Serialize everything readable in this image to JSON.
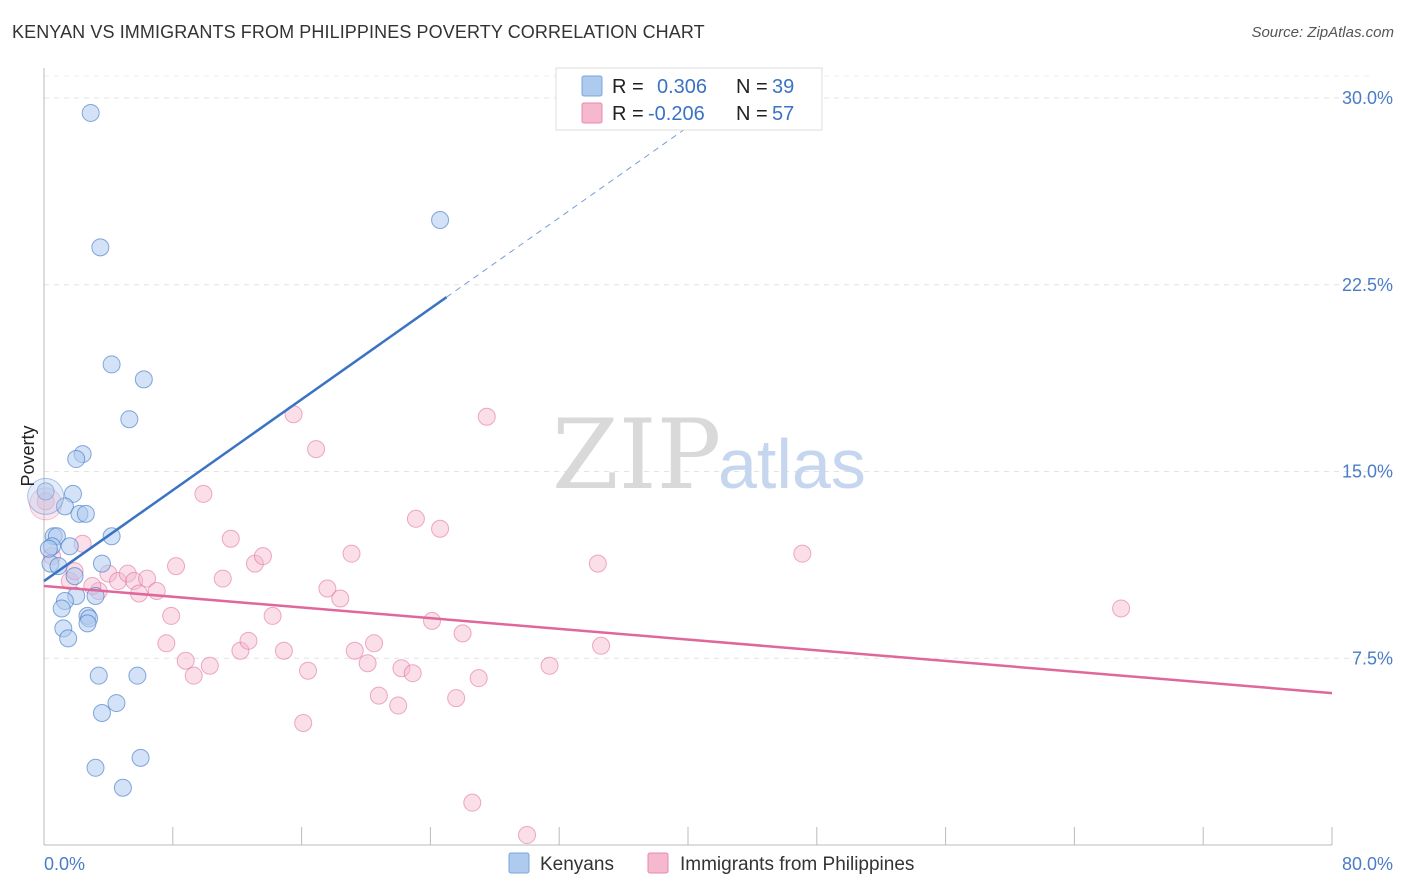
{
  "title": "KENYAN VS IMMIGRANTS FROM PHILIPPINES POVERTY CORRELATION CHART",
  "source": "Source: ZipAtlas.com",
  "watermark": {
    "zip": "ZIP",
    "atlas": "atlas"
  },
  "colors": {
    "blue": "#3b73c4",
    "blue_fill": "#aecbef",
    "pink": "#e0679a",
    "pink_fill": "#f5b8ce",
    "tick": "#4a7cc7"
  },
  "legend": {
    "rows": [
      {
        "r_label": "R =",
        "r_value": "0.306",
        "n_label": "N =",
        "n_value": "39"
      },
      {
        "r_label": "R =",
        "r_value": "-0.206",
        "n_label": "N =",
        "n_value": "57"
      }
    ]
  },
  "bottom_legend": [
    "Kenyans",
    "Immigrants from Philippines"
  ],
  "chart_data": {
    "type": "scatter",
    "xlabel": "",
    "ylabel": "Poverty",
    "xlim": [
      0,
      80
    ],
    "ylim": [
      0,
      30
    ],
    "x_tick_labels": [
      "0.0%",
      "80.0%"
    ],
    "y_ticks": [
      7.5,
      15.0,
      22.5,
      30.0
    ],
    "y_tick_labels": [
      "7.5%",
      "15.0%",
      "22.5%",
      "30.0%"
    ],
    "grid": true,
    "legend_position": "top-center",
    "series": [
      {
        "name": "Kenyans",
        "trend": {
          "x0": 0,
          "y0": 10.6,
          "x1": 25,
          "y1": 22.0,
          "dashed_to_x": 40
        },
        "points": [
          [
            2.9,
            29.4
          ],
          [
            3.5,
            24.0
          ],
          [
            24.6,
            25.1
          ],
          [
            4.2,
            19.3
          ],
          [
            6.2,
            18.7
          ],
          [
            5.3,
            17.1
          ],
          [
            2.4,
            15.7
          ],
          [
            2.0,
            15.5
          ],
          [
            0.1,
            14.2
          ],
          [
            1.8,
            14.1
          ],
          [
            1.3,
            13.6
          ],
          [
            2.2,
            13.3
          ],
          [
            2.6,
            13.3
          ],
          [
            0.6,
            12.4
          ],
          [
            0.8,
            12.4
          ],
          [
            4.2,
            12.4
          ],
          [
            0.5,
            12.0
          ],
          [
            1.6,
            12.0
          ],
          [
            0.4,
            11.3
          ],
          [
            0.9,
            11.2
          ],
          [
            3.6,
            11.3
          ],
          [
            1.9,
            10.8
          ],
          [
            2.0,
            10.0
          ],
          [
            3.2,
            10.0
          ],
          [
            1.3,
            9.8
          ],
          [
            1.1,
            9.5
          ],
          [
            2.7,
            9.2
          ],
          [
            2.8,
            9.1
          ],
          [
            2.7,
            8.9
          ],
          [
            1.2,
            8.7
          ],
          [
            1.5,
            8.3
          ],
          [
            3.4,
            6.8
          ],
          [
            5.8,
            6.8
          ],
          [
            4.5,
            5.7
          ],
          [
            3.6,
            5.3
          ],
          [
            6.0,
            3.5
          ],
          [
            3.2,
            3.1
          ],
          [
            4.9,
            2.3
          ],
          [
            0.3,
            11.9
          ]
        ]
      },
      {
        "name": "Immigrants from Philippines",
        "trend": {
          "x0": 0,
          "y0": 10.4,
          "x1": 80,
          "y1": 6.1
        },
        "points": [
          [
            0.1,
            13.8
          ],
          [
            0.5,
            11.6
          ],
          [
            1.6,
            10.6
          ],
          [
            1.9,
            11.0
          ],
          [
            2.4,
            12.1
          ],
          [
            3.4,
            10.2
          ],
          [
            4.0,
            10.9
          ],
          [
            4.6,
            10.6
          ],
          [
            5.2,
            10.9
          ],
          [
            5.6,
            10.6
          ],
          [
            5.9,
            10.1
          ],
          [
            6.4,
            10.7
          ],
          [
            7.0,
            10.2
          ],
          [
            7.6,
            8.1
          ],
          [
            7.9,
            9.2
          ],
          [
            8.2,
            11.2
          ],
          [
            8.8,
            7.4
          ],
          [
            9.3,
            6.8
          ],
          [
            9.9,
            14.1
          ],
          [
            10.3,
            7.2
          ],
          [
            11.1,
            10.7
          ],
          [
            11.6,
            12.3
          ],
          [
            12.2,
            7.8
          ],
          [
            12.7,
            8.2
          ],
          [
            13.1,
            11.3
          ],
          [
            13.6,
            11.6
          ],
          [
            14.2,
            9.2
          ],
          [
            14.9,
            7.8
          ],
          [
            15.5,
            17.3
          ],
          [
            16.1,
            4.9
          ],
          [
            16.4,
            7.0
          ],
          [
            16.9,
            15.9
          ],
          [
            17.6,
            10.3
          ],
          [
            18.4,
            9.9
          ],
          [
            19.1,
            11.7
          ],
          [
            19.3,
            7.8
          ],
          [
            20.1,
            7.3
          ],
          [
            20.5,
            8.1
          ],
          [
            20.8,
            6.0
          ],
          [
            22.0,
            5.6
          ],
          [
            22.2,
            7.1
          ],
          [
            22.9,
            6.9
          ],
          [
            23.1,
            13.1
          ],
          [
            24.1,
            9.0
          ],
          [
            24.6,
            12.7
          ],
          [
            25.6,
            5.9
          ],
          [
            26.0,
            8.5
          ],
          [
            26.6,
            1.7
          ],
          [
            27.0,
            6.7
          ],
          [
            27.5,
            17.2
          ],
          [
            30.0,
            0.4
          ],
          [
            31.4,
            7.2
          ],
          [
            34.4,
            11.3
          ],
          [
            34.6,
            8.0
          ],
          [
            47.1,
            11.7
          ],
          [
            66.9,
            9.5
          ],
          [
            3.0,
            10.4
          ]
        ]
      }
    ]
  }
}
